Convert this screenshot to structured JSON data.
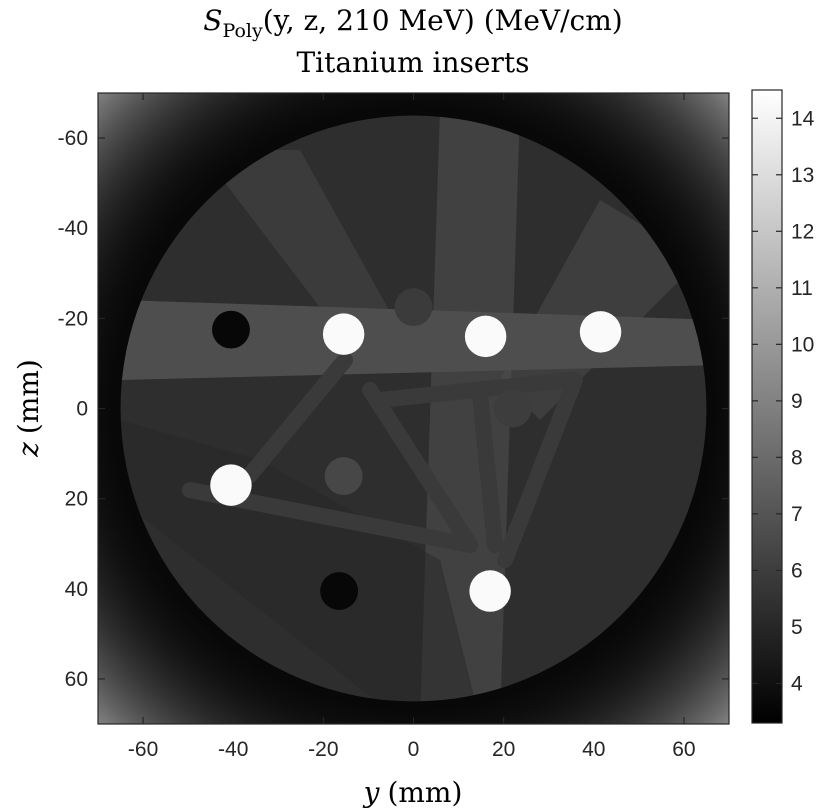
{
  "chart_data": {
    "type": "heatmap",
    "title": {
      "main": "S",
      "subscript": "Poly",
      "rest": "(y, z, 210 MeV) (MeV/cm)",
      "line2": "Titanium inserts"
    },
    "xlabel": {
      "var": "y",
      "unit": "(mm)"
    },
    "ylabel": {
      "var": "z",
      "unit": "(mm)"
    },
    "xlim": [
      -70,
      70
    ],
    "ylim": [
      -70,
      70
    ],
    "y_axis_reversed": true,
    "xticks": [
      -60,
      -40,
      -20,
      0,
      20,
      40,
      60
    ],
    "yticks": [
      -60,
      -40,
      -20,
      0,
      20,
      40,
      60
    ],
    "colorbar": {
      "colormap": "gray",
      "clim": [
        3.3,
        14.5
      ],
      "ticks": [
        4,
        5,
        6,
        7,
        8,
        9,
        10,
        11,
        12,
        13,
        14
      ]
    },
    "background_value": 4.9,
    "outside_value": 3.6,
    "phantom": {
      "center": [
        0,
        0
      ],
      "radius": 65,
      "value": 5.3
    },
    "inserts": [
      {
        "y": -40.5,
        "z": -17.5,
        "r": 4.2,
        "value": 3.6
      },
      {
        "y": -15.5,
        "z": -16.5,
        "r": 4.6,
        "value": 14.3
      },
      {
        "y": 0,
        "z": -22.5,
        "r": 4.2,
        "value": 5.9
      },
      {
        "y": 16,
        "z": -16,
        "r": 4.6,
        "value": 14.3
      },
      {
        "y": 41.5,
        "z": -17,
        "r": 4.6,
        "value": 14.3
      },
      {
        "y": 22,
        "z": 0,
        "r": 4.2,
        "value": 6.0
      },
      {
        "y": -40.5,
        "z": 17,
        "r": 4.6,
        "value": 14.3
      },
      {
        "y": -15.5,
        "z": 15,
        "r": 4.2,
        "value": 6.4
      },
      {
        "y": -16.5,
        "z": 40.5,
        "r": 4.2,
        "value": 3.6
      },
      {
        "y": 17,
        "z": 40.5,
        "r": 4.6,
        "value": 14.3
      }
    ]
  }
}
